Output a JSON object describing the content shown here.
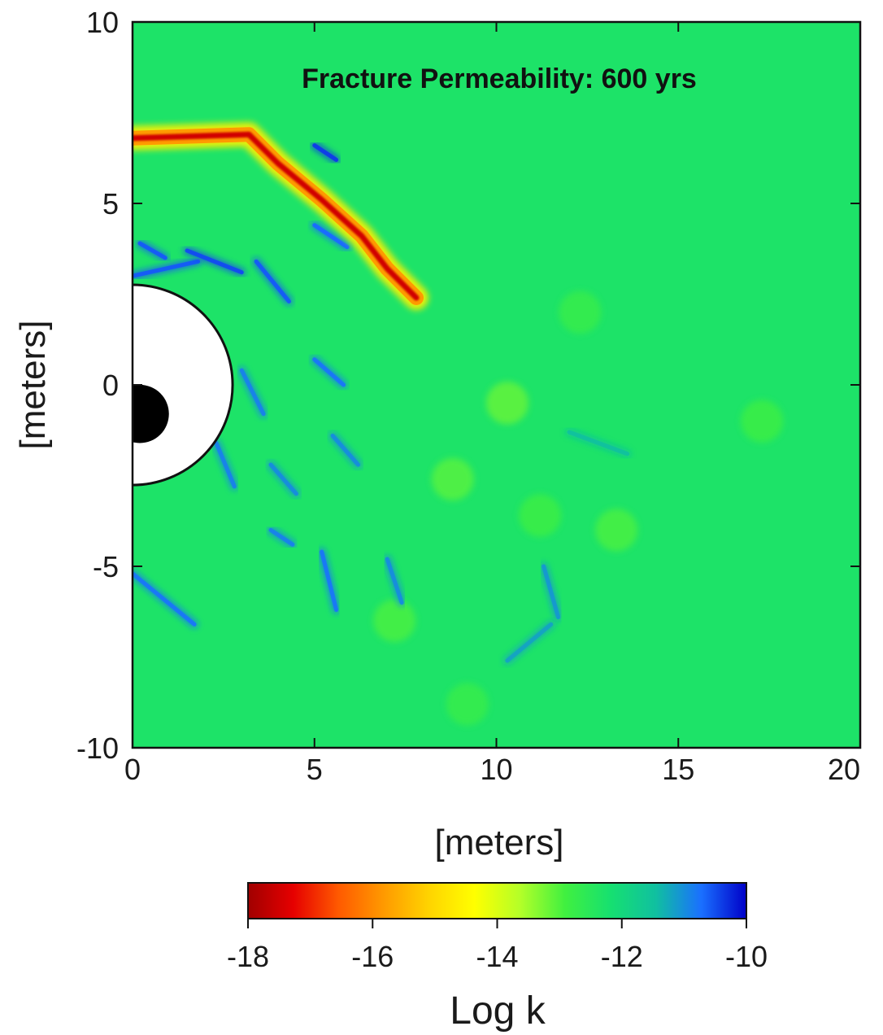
{
  "chart_data": {
    "type": "heatmap",
    "title": "Fracture Permeability: 600 yrs",
    "xlabel": "[meters]",
    "ylabel": "[meters]",
    "xlim": [
      0,
      20
    ],
    "ylim": [
      -10,
      10
    ],
    "x_ticks": [
      0,
      5,
      10,
      15,
      20
    ],
    "y_ticks": [
      -10,
      -5,
      0,
      5,
      10
    ],
    "x_tick_labels": [
      "0",
      "5",
      "10",
      "15",
      "20"
    ],
    "y_tick_labels": [
      "-10",
      "-5",
      "0",
      "5",
      "10"
    ],
    "background_log_k": -12.3,
    "colorbar": {
      "label": "Log k",
      "range": [
        -18,
        -10
      ],
      "ticks": [
        -18,
        -16,
        -14,
        -12,
        -10
      ],
      "tick_labels": [
        "-18",
        "-16",
        "-14",
        "-12",
        "-10"
      ],
      "colors": [
        "#a00000",
        "#e60000",
        "#ff5a00",
        "#ff9a00",
        "#ffd400",
        "#ffff00",
        "#b4ff28",
        "#40f040",
        "#16e070",
        "#10c0a0",
        "#1a70ff",
        "#0000c8"
      ]
    },
    "excavation": {
      "center_x": 0,
      "center_y": 0,
      "radius": 2.75
    },
    "inner_disk": {
      "center_x": 0.2,
      "center_y": -0.8,
      "radius": 0.8
    },
    "fracture_path": {
      "log_k": -17.5,
      "points": [
        [
          0,
          6.8
        ],
        [
          3.2,
          6.9
        ],
        [
          4.0,
          6.1
        ],
        [
          5.2,
          5.1
        ],
        [
          6.3,
          4.1
        ],
        [
          7.0,
          3.2
        ],
        [
          7.8,
          2.4
        ]
      ]
    },
    "low_k_features": [
      {
        "x": [
          0.0,
          1.7
        ],
        "y": [
          -5.2,
          -6.6
        ],
        "log_k": -10.8
      },
      {
        "x": [
          0.0,
          1.8
        ],
        "y": [
          3.0,
          3.4
        ],
        "log_k": -10.6
      },
      {
        "x": [
          1.5,
          3.0
        ],
        "y": [
          3.7,
          3.1
        ],
        "log_k": -10.5
      },
      {
        "x": [
          3.4,
          4.3
        ],
        "y": [
          3.4,
          2.3
        ],
        "log_k": -10.6
      },
      {
        "x": [
          5.0,
          5.6
        ],
        "y": [
          6.6,
          6.2
        ],
        "log_k": -10.4
      },
      {
        "x": [
          5.0,
          5.9
        ],
        "y": [
          4.4,
          3.8
        ],
        "log_k": -10.7
      },
      {
        "x": [
          3.0,
          3.6
        ],
        "y": [
          0.4,
          -0.8
        ],
        "log_k": -10.9
      },
      {
        "x": [
          5.0,
          5.8
        ],
        "y": [
          0.7,
          0.0
        ],
        "log_k": -10.8
      },
      {
        "x": [
          2.3,
          2.8
        ],
        "y": [
          -1.6,
          -2.8
        ],
        "log_k": -10.9
      },
      {
        "x": [
          3.8,
          4.5
        ],
        "y": [
          -2.2,
          -3.0
        ],
        "log_k": -11.0
      },
      {
        "x": [
          5.5,
          6.2
        ],
        "y": [
          -1.4,
          -2.2
        ],
        "log_k": -11.0
      },
      {
        "x": [
          5.2,
          5.6
        ],
        "y": [
          -4.6,
          -6.2
        ],
        "log_k": -10.8
      },
      {
        "x": [
          7.0,
          7.4
        ],
        "y": [
          -4.8,
          -6.0
        ],
        "log_k": -11.0
      },
      {
        "x": [
          11.3,
          11.7
        ],
        "y": [
          -5.0,
          -6.4
        ],
        "log_k": -11.1
      },
      {
        "x": [
          10.3,
          11.5
        ],
        "y": [
          -7.6,
          -6.6
        ],
        "log_k": -11.2
      },
      {
        "x": [
          12.0,
          13.6
        ],
        "y": [
          -1.3,
          -1.9
        ],
        "log_k": -11.5
      },
      {
        "x": [
          0.2,
          0.9
        ],
        "y": [
          3.9,
          3.5
        ],
        "log_k": -10.6
      },
      {
        "x": [
          3.8,
          4.4
        ],
        "y": [
          -4.0,
          -4.4
        ],
        "log_k": -10.9
      }
    ],
    "high_k_features": [
      {
        "x": 10.3,
        "y": -0.5,
        "log_k": -13.2
      },
      {
        "x": 12.3,
        "y": 2.0,
        "log_k": -12.8
      },
      {
        "x": 17.3,
        "y": -1.0,
        "log_k": -12.9
      },
      {
        "x": 13.3,
        "y": -4.0,
        "log_k": -13.0
      },
      {
        "x": 8.8,
        "y": -2.6,
        "log_k": -13.1
      },
      {
        "x": 11.2,
        "y": -3.6,
        "log_k": -12.9
      },
      {
        "x": 7.2,
        "y": -6.5,
        "log_k": -13.0
      },
      {
        "x": 9.2,
        "y": -8.8,
        "log_k": -12.8
      }
    ]
  }
}
